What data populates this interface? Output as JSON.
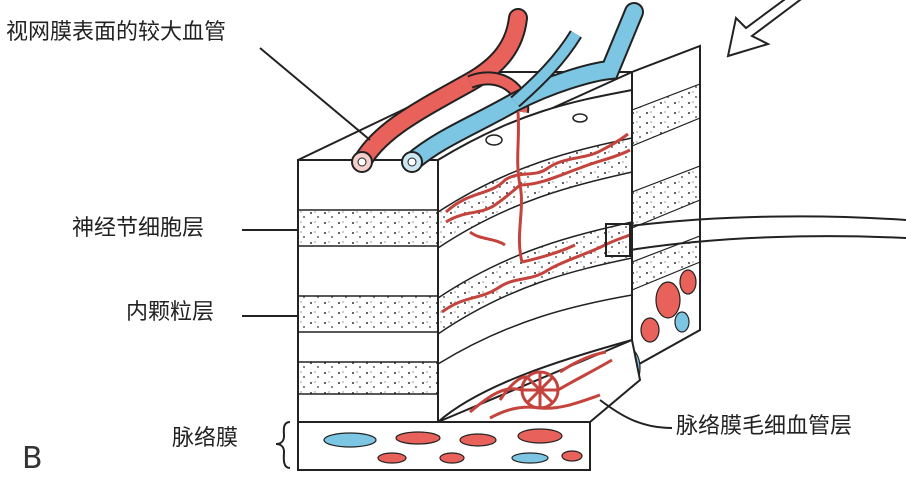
{
  "panel_letter": "B",
  "labels": {
    "surface_vessels": "视网膜表面的较大血管",
    "ganglion_cell_layer": "神经节细胞层",
    "inner_nuclear_layer": "内颗粒层",
    "choroid": "脉络膜",
    "choriocapillaris": "脉络膜毛细血管层"
  },
  "colors": {
    "artery": "#e8615a",
    "vein": "#7cc6e3",
    "outline": "#222222",
    "label_text": "#222222"
  }
}
